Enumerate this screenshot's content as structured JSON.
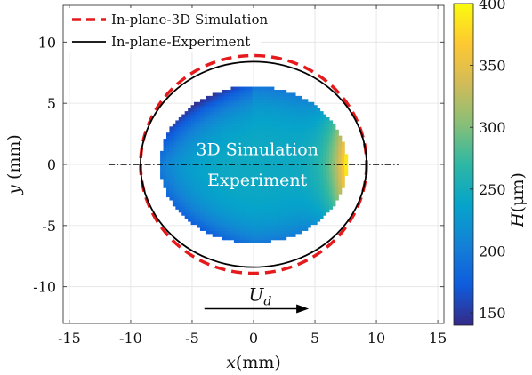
{
  "chart_data": {
    "type": "heatmap",
    "title": "",
    "xlabel": "x(mm)",
    "ylabel": "y (mm)",
    "xlim": [
      -15.5,
      15.5
    ],
    "ylim": [
      -13,
      13
    ],
    "x_ticks": [
      -15,
      -10,
      -5,
      0,
      5,
      10,
      15
    ],
    "y_ticks": [
      -10,
      -5,
      0,
      5,
      10
    ],
    "y_tick_labels": [
      "-10",
      "-5",
      "0",
      "5",
      "10"
    ],
    "x_tick_labels": [
      "-15",
      "-10",
      "-5",
      "0",
      "5",
      "10",
      "15"
    ],
    "grid": true,
    "legend_position": "top-left",
    "legend": [
      {
        "label": "In-plane-3D Simulation",
        "style": "dashed",
        "color": "#e41a1c"
      },
      {
        "label": "In-plane-Experiment",
        "style": "solid",
        "color": "#000000"
      }
    ],
    "series": [
      {
        "name": "In-plane-3D Simulation",
        "kind": "ellipse",
        "cx": 0,
        "cy": 0,
        "rx": 9.2,
        "ry": 8.9,
        "color": "#e41a1c"
      },
      {
        "name": "In-plane-Experiment",
        "kind": "ellipse",
        "cx": 0,
        "cy": 0,
        "rx": 9.2,
        "ry": 8.4,
        "color": "#000000"
      }
    ],
    "heightfield": {
      "cx": 0,
      "cy": 0,
      "rx": 7.6,
      "ry": 6.4,
      "min_value": 140,
      "max_value": 400,
      "center_value": 245,
      "rear_value": 235,
      "front_rim_value": 390
    },
    "centerline": {
      "x_start": -11.8,
      "x_end": 11.8,
      "y": 0
    },
    "annotations": [
      {
        "text": "3D Simulation",
        "x": 0.3,
        "y": 1.2
      },
      {
        "text": "Experiment",
        "x": 0.3,
        "y": -1.3
      }
    ],
    "arrow": {
      "label_main": "U",
      "label_sub": "d",
      "x_start": -4.0,
      "x_end": 4.5,
      "y": -11.8
    },
    "colorbar": {
      "label_symbol": "H",
      "label_unit": "(μm)",
      "min": 140,
      "max": 400,
      "ticks": [
        150,
        200,
        250,
        300,
        350,
        400
      ],
      "tick_labels": [
        "150",
        "200",
        "250",
        "300",
        "350",
        "400"
      ],
      "colormap": [
        "#352a87",
        "#0f5cdd",
        "#1481d6",
        "#06a4ca",
        "#2eb7a4",
        "#87bf77",
        "#d1bb59",
        "#fec832",
        "#f9fb0e"
      ]
    }
  }
}
